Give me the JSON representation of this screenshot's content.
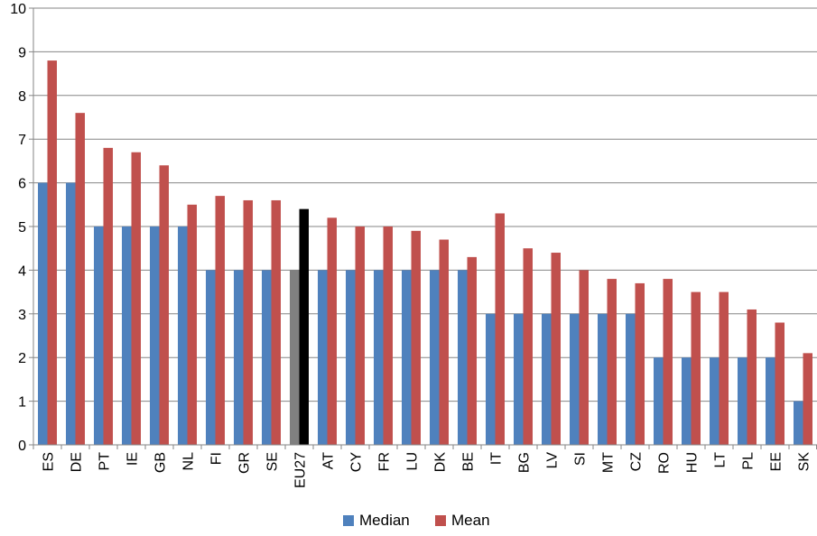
{
  "chart_data": {
    "type": "bar",
    "title": "",
    "xlabel": "",
    "ylabel": "",
    "ylim": [
      0,
      10
    ],
    "yticks": [
      0,
      1,
      2,
      3,
      4,
      5,
      6,
      7,
      8,
      9,
      10
    ],
    "grid": true,
    "legend_position": "bottom",
    "categories": [
      "ES",
      "DE",
      "PT",
      "IE",
      "GB",
      "NL",
      "FI",
      "GR",
      "SE",
      "EU27",
      "AT",
      "CY",
      "FR",
      "LU",
      "DK",
      "BE",
      "IT",
      "BG",
      "LV",
      "SI",
      "MT",
      "CZ",
      "RO",
      "HU",
      "LT",
      "PL",
      "EE",
      "SK"
    ],
    "series": [
      {
        "name": "Median",
        "color": "#4F81BD",
        "values": [
          6,
          6,
          5,
          5,
          5,
          5,
          4,
          4,
          4,
          4,
          4,
          4,
          4,
          4,
          4,
          4,
          3,
          3,
          3,
          3,
          3,
          3,
          2,
          2,
          2,
          2,
          2,
          1
        ]
      },
      {
        "name": "Mean",
        "color": "#C0504D",
        "values": [
          8.8,
          7.6,
          6.8,
          6.7,
          6.4,
          5.5,
          5.7,
          5.6,
          5.6,
          5.4,
          5.2,
          5.0,
          5.0,
          4.9,
          4.7,
          4.3,
          5.3,
          4.5,
          4.4,
          4.0,
          3.8,
          3.7,
          3.8,
          3.5,
          3.5,
          3.1,
          2.8,
          2.1
        ]
      }
    ],
    "highlight": {
      "category": "EU27",
      "median_color": "#808080",
      "mean_color": "#000000"
    },
    "colors": {
      "grid": "#868686",
      "axis": "#868686"
    }
  }
}
